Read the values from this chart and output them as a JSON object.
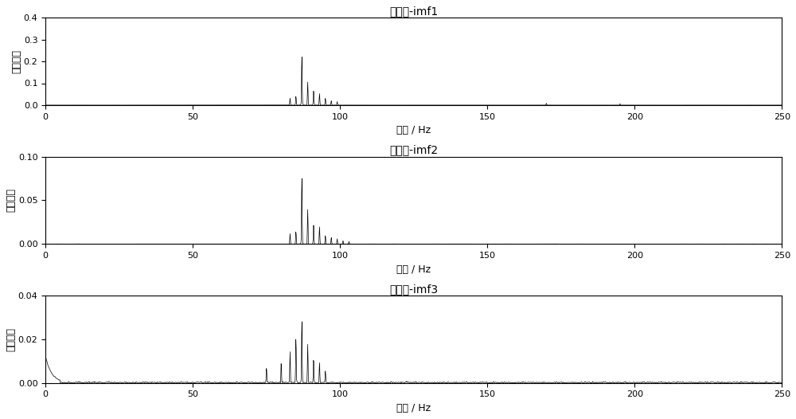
{
  "title1": "频谱图-imf1",
  "title2": "频谱图-imf2",
  "title3": "频谱图-imf3",
  "xlabel": "频率 / Hz",
  "ylabel": "信号幅值",
  "xlim": [
    0,
    250
  ],
  "ylim1": [
    0,
    0.4
  ],
  "ylim2": [
    0,
    0.1
  ],
  "ylim3": [
    0,
    0.04
  ],
  "yticks1": [
    0,
    0.1,
    0.2,
    0.3,
    0.4
  ],
  "yticks2": [
    0,
    0.05,
    0.1
  ],
  "yticks3": [
    0,
    0.02,
    0.04
  ],
  "xticks": [
    0,
    50,
    100,
    150,
    200,
    250
  ],
  "line_color": "#000000",
  "bg_color": "#ffffff",
  "fs": 500,
  "N": 4096
}
